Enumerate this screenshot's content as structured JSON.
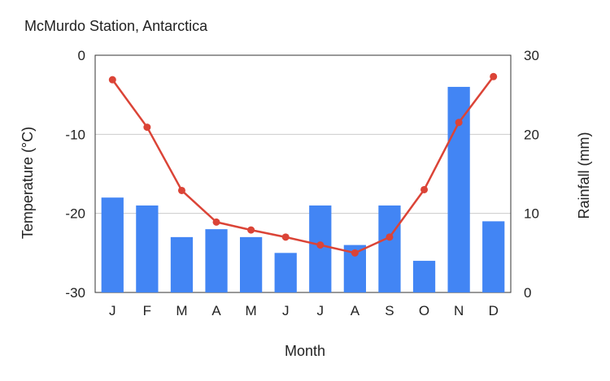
{
  "chart_data": {
    "type": "bar+line",
    "title": "McMurdo Station, Antarctica",
    "xlabel": "Month",
    "categories": [
      "J",
      "F",
      "M",
      "A",
      "M",
      "J",
      "J",
      "A",
      "S",
      "O",
      "N",
      "D"
    ],
    "y_left": {
      "label": "Temperature (°C)",
      "range": [
        -30,
        0
      ],
      "ticks": [
        0,
        -10,
        -20,
        -30
      ]
    },
    "y_right": {
      "label": "Rainfall (mm)",
      "range": [
        0,
        30
      ],
      "ticks": [
        30,
        20,
        10,
        0
      ]
    },
    "grid": true,
    "series": [
      {
        "kind": "bar",
        "axis": "right",
        "color": "#4285f4",
        "values": [
          12,
          11,
          7,
          8,
          7,
          5,
          11,
          6,
          11,
          4,
          26,
          9
        ]
      },
      {
        "kind": "line",
        "axis": "left",
        "color": "#db4437",
        "values": [
          -3.1,
          -9.1,
          -17.1,
          -21.1,
          -22.1,
          -23,
          -24,
          -25,
          -23,
          -17,
          -8.5,
          -2.7
        ]
      }
    ]
  }
}
